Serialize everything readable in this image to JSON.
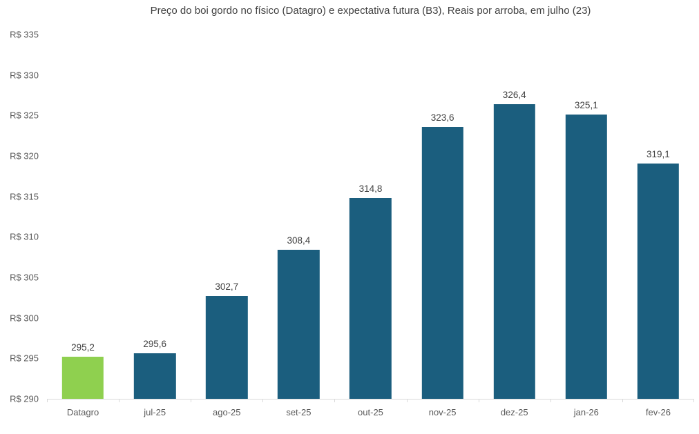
{
  "chart_data": {
    "type": "bar",
    "title": "Preço do boi gordo no físico (Datagro)  e expectativa futura (B3), Reais por arroba, em julho (23)",
    "categories": [
      "Datagro",
      "jul-25",
      "ago-25",
      "set-25",
      "out-25",
      "nov-25",
      "dez-25",
      "jan-26",
      "fev-26"
    ],
    "values": [
      295.2,
      295.6,
      302.7,
      308.4,
      314.8,
      323.6,
      326.4,
      325.1,
      319.1
    ],
    "value_labels": [
      "295,2",
      "295,6",
      "302,7",
      "308,4",
      "314,8",
      "323,6",
      "326,4",
      "325,1",
      "319,1"
    ],
    "bar_colors": [
      "#8FD04F",
      "#1B5E7E",
      "#1B5E7E",
      "#1B5E7E",
      "#1B5E7E",
      "#1B5E7E",
      "#1B5E7E",
      "#1B5E7E",
      "#1B5E7E"
    ],
    "xlabel": "",
    "ylabel": "",
    "ylim": [
      290,
      335
    ],
    "yticks": [
      {
        "label": "R$ 335",
        "value": 335
      },
      {
        "label": "R$ 330",
        "value": 330
      },
      {
        "label": "R$ 325",
        "value": 325
      },
      {
        "label": "R$ 320",
        "value": 320
      },
      {
        "label": "R$ 315",
        "value": 315
      },
      {
        "label": "R$ 310",
        "value": 310
      },
      {
        "label": "R$ 305",
        "value": 305
      },
      {
        "label": "R$ 300",
        "value": 300
      },
      {
        "label": "R$ 295",
        "value": 295
      },
      {
        "label": "R$ 290",
        "value": 290
      }
    ],
    "grid": false,
    "legend_position": "none",
    "colors": {
      "highlight_green": "#8FD04F",
      "series_teal": "#1B5E7E",
      "axis_line": "#D9D9D9",
      "title_text": "#404040",
      "data_label_text": "#404040",
      "axis_label_text": "#595959",
      "background": "#FFFFFF"
    }
  }
}
